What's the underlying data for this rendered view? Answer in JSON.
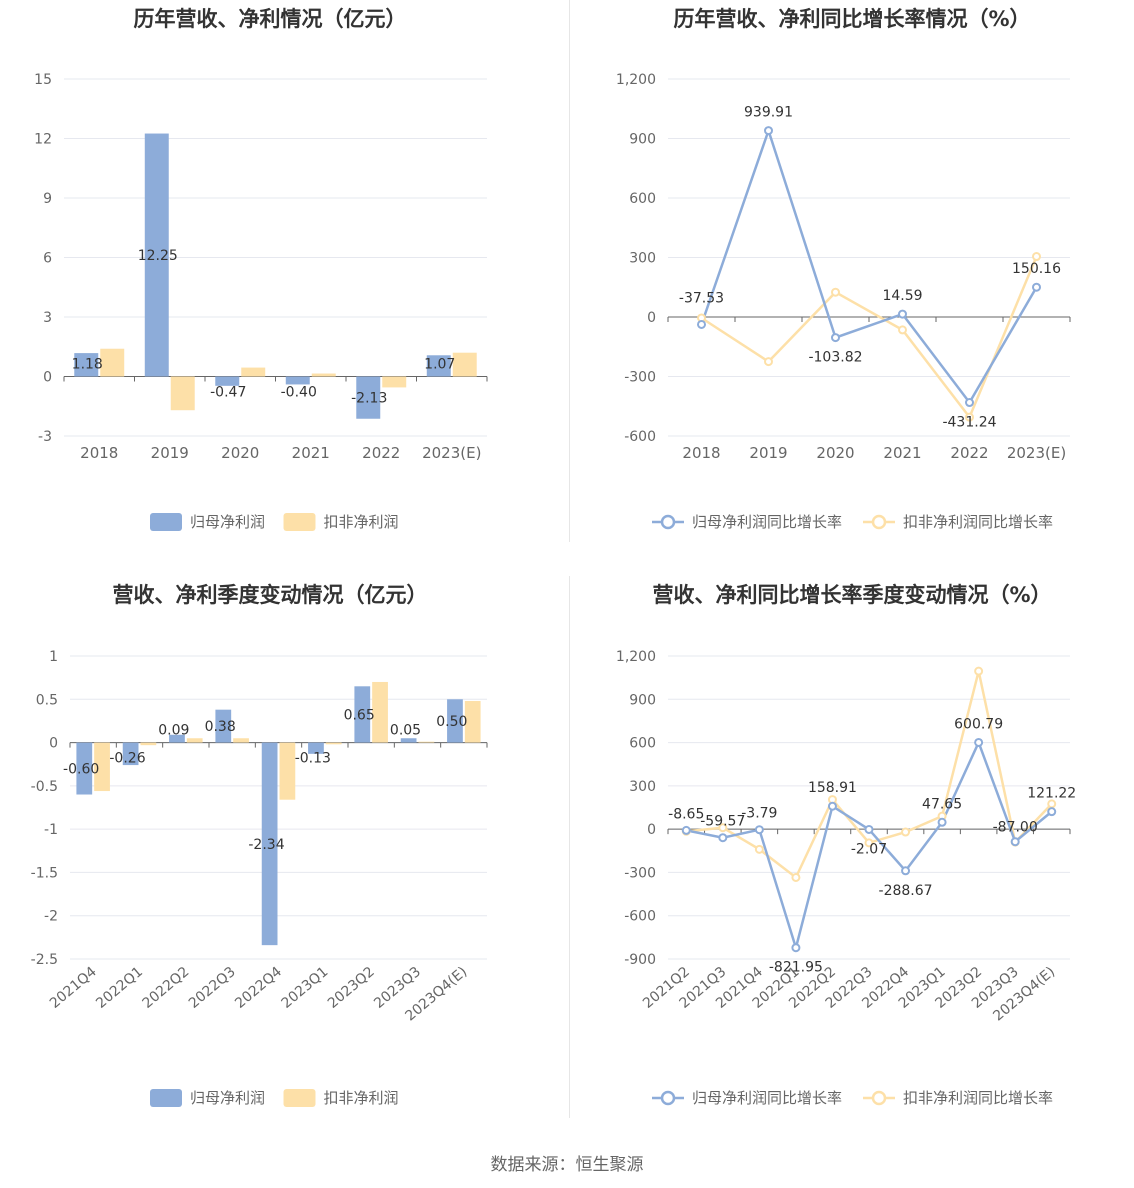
{
  "colors": {
    "primary": "#8dacd9",
    "secondary": "#fde0a8",
    "axis": "#666666",
    "grid": "#e6e8ef",
    "title": "#333333"
  },
  "footer": "数据来源：恒生聚源",
  "chart_data": [
    {
      "type": "bar",
      "title": "历年营收、净利情况（亿元）",
      "categories": [
        "2018",
        "2019",
        "2020",
        "2021",
        "2022",
        "2023(E)"
      ],
      "yticks": [
        "15",
        "12",
        "9",
        "6",
        "3",
        "0",
        "-3"
      ],
      "ylim": [
        -3,
        15
      ],
      "series": [
        {
          "name": "归母净利润",
          "values": [
            1.18,
            12.25,
            -0.47,
            -0.4,
            -2.13,
            1.07
          ],
          "labels": [
            "1.18",
            "12.25",
            "-0.47",
            "-0.40",
            "-2.13",
            "1.07"
          ]
        },
        {
          "name": "扣非净利润",
          "values": [
            1.4,
            -1.7,
            0.45,
            0.15,
            -0.55,
            1.2
          ]
        }
      ],
      "legend": "bottom-center"
    },
    {
      "type": "line",
      "title": "历年营收、净利同比增长率情况（%）",
      "categories": [
        "2018",
        "2019",
        "2020",
        "2021",
        "2022",
        "2023(E)"
      ],
      "yticks": [
        "1,200",
        "900",
        "600",
        "300",
        "0",
        "-300",
        "-600"
      ],
      "ylim": [
        -600,
        1200
      ],
      "series": [
        {
          "name": "归母净利润同比增长率",
          "values": [
            -37.53,
            939.91,
            -103.82,
            14.59,
            -431.24,
            150.16
          ],
          "labels": [
            "-37.53",
            "939.91",
            "-103.82",
            "14.59",
            "-431.24",
            "150.16"
          ]
        },
        {
          "name": "扣非净利润同比增长率",
          "values": [
            -5,
            -225,
            125,
            -65,
            -505,
            305
          ]
        }
      ],
      "legend": "bottom-center"
    },
    {
      "type": "bar",
      "title": "营收、净利季度变动情况（亿元）",
      "categories": [
        "2021Q4",
        "2022Q1",
        "2022Q2",
        "2022Q3",
        "2022Q4",
        "2023Q1",
        "2023Q2",
        "2023Q3",
        "2023Q4(E)"
      ],
      "yticks": [
        "1",
        "0.5",
        "0",
        "-0.5",
        "-1",
        "-1.5",
        "-2",
        "-2.5"
      ],
      "ylim": [
        -2.5,
        1
      ],
      "series": [
        {
          "name": "归母净利润",
          "values": [
            -0.6,
            -0.26,
            0.09,
            0.38,
            -2.34,
            -0.13,
            0.65,
            0.05,
            0.5
          ],
          "labels": [
            "-0.60",
            "-0.26",
            "0.09",
            "0.38",
            "-2.34",
            "-0.13",
            "0.65",
            "0.05",
            "0.50"
          ]
        },
        {
          "name": "扣非净利润",
          "values": [
            -0.56,
            -0.03,
            0.05,
            0.05,
            -0.66,
            -0.02,
            0.7,
            0.01,
            0.48
          ]
        }
      ],
      "legend": "bottom-center"
    },
    {
      "type": "line",
      "title": "营收、净利同比增长率季度变动情况（%）",
      "categories": [
        "2021Q2",
        "2021Q3",
        "2021Q4",
        "2022Q1",
        "2022Q2",
        "2022Q3",
        "2022Q4",
        "2023Q1",
        "2023Q2",
        "2023Q3",
        "2023Q4(E)"
      ],
      "yticks": [
        "1,200",
        "900",
        "600",
        "300",
        "0",
        "-300",
        "-600",
        "-900"
      ],
      "ylim": [
        -900,
        1200
      ],
      "series": [
        {
          "name": "归母净利润同比增长率",
          "values": [
            -8.65,
            -59.57,
            -3.79,
            -821.95,
            158.91,
            -2.07,
            -288.67,
            47.65,
            600.79,
            -87.0,
            121.22
          ],
          "labels": [
            "-8.65",
            "-59.57",
            "-3.79",
            "-821.95",
            "158.91",
            "-2.07",
            "-288.67",
            "47.65",
            "600.79",
            "-87.00",
            "121.22"
          ]
        },
        {
          "name": "扣非净利润同比增长率",
          "values": [
            -15,
            10,
            -140,
            -335,
            205,
            -95,
            -20,
            90,
            1095,
            -90,
            175
          ]
        }
      ],
      "legend": "bottom-center"
    }
  ]
}
